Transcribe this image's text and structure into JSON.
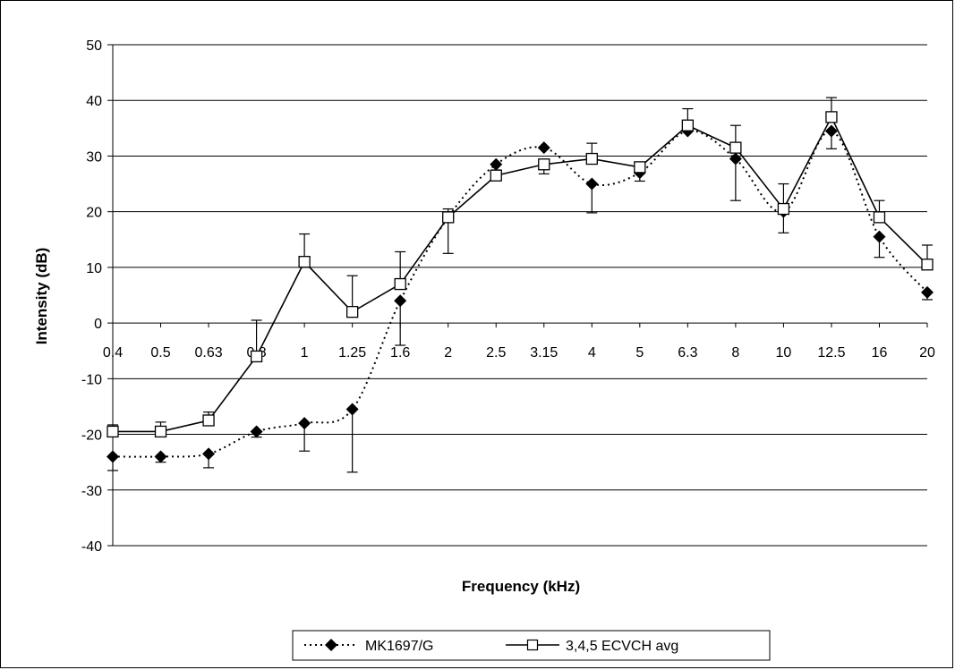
{
  "chart_data": {
    "type": "line",
    "title": "",
    "xlabel": "Frequency (kHz)",
    "ylabel": "Intensity (dB)",
    "categories": [
      "0.4",
      "0.5",
      "0.63",
      "0.8",
      "1",
      "1.25",
      "1.6",
      "2",
      "2.5",
      "3.15",
      "4",
      "5",
      "6.3",
      "8",
      "10",
      "12.5",
      "16",
      "20"
    ],
    "ylim": [
      -40,
      50
    ],
    "yticks": [
      -40,
      -30,
      -20,
      -10,
      0,
      10,
      20,
      30,
      40,
      50
    ],
    "grid": true,
    "legend_position": "bottom",
    "series": [
      {
        "name": "MK1697/G",
        "line_style": "dotted",
        "marker": "filled-diamond",
        "color": "#000000",
        "values": [
          -24,
          -24,
          -23.5,
          -19.5,
          -18,
          -15.5,
          4,
          19,
          28.5,
          31.5,
          25,
          27,
          34.5,
          29.5,
          20,
          34.5,
          15.5,
          5.5
        ],
        "err_low": [
          -26.5,
          -25,
          -26,
          -20.5,
          -23,
          -26.8,
          -4,
          19,
          28.5,
          31.5,
          19.8,
          27,
          34.5,
          22,
          16.2,
          31.3,
          11.8,
          4.2
        ],
        "err_high": [
          -24,
          -24,
          -23.5,
          -19.5,
          -18,
          -15.5,
          4,
          19,
          28.5,
          31.5,
          25,
          27,
          34.5,
          29.5,
          20,
          34.5,
          15.5,
          5.5
        ]
      },
      {
        "name": "3,4,5 ECVCH avg",
        "line_style": "solid",
        "marker": "open-square",
        "color": "#000000",
        "values": [
          -19.5,
          -19.5,
          -17.5,
          -6,
          11,
          2,
          7,
          19,
          26.5,
          28.5,
          29.5,
          28,
          35.5,
          31.5,
          20.5,
          37,
          19,
          10.5
        ],
        "err_low": [
          -19.5,
          -19.5,
          -17.5,
          -6,
          11,
          2,
          7,
          12.5,
          26.5,
          26.8,
          29.5,
          25.5,
          35.5,
          31.5,
          20.5,
          37,
          19,
          10.5
        ],
        "err_high": [
          -18.3,
          -17.8,
          -16,
          0.5,
          16,
          8.5,
          12.8,
          20.5,
          27.5,
          28.5,
          32.3,
          28,
          38.5,
          35.5,
          25,
          40.5,
          22,
          14
        ]
      }
    ]
  }
}
